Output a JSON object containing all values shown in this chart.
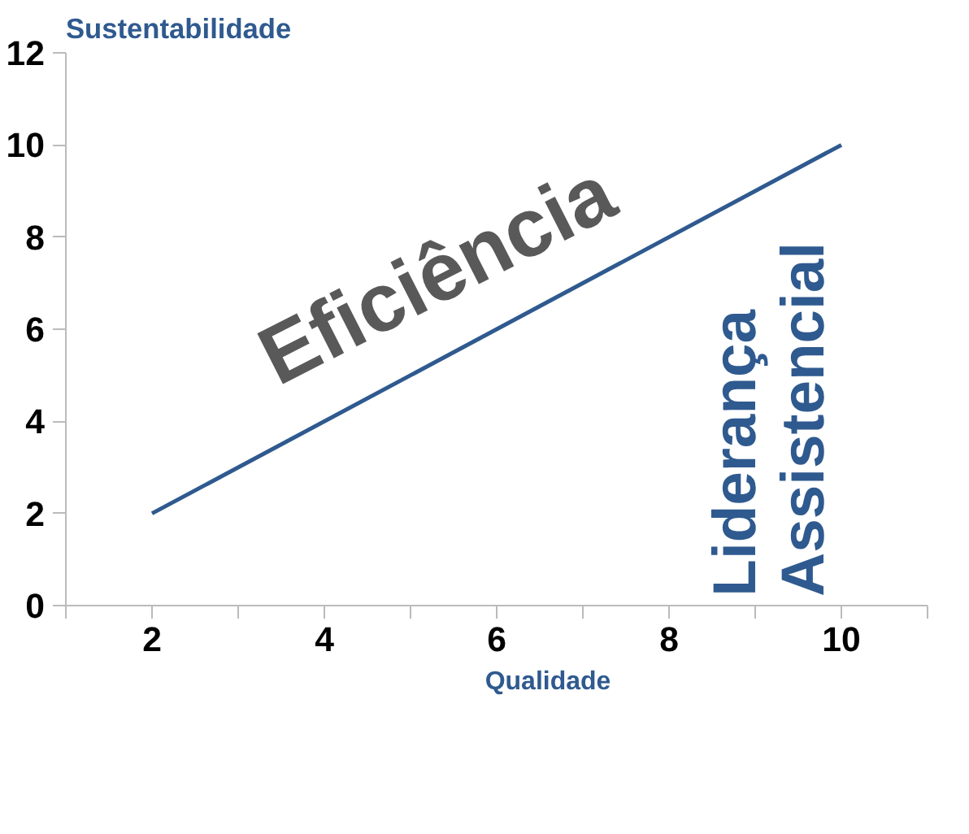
{
  "chart_data": {
    "type": "line",
    "xlabel": null,
    "ylabel": "Sustentabilidade",
    "x": [
      2,
      10
    ],
    "series": [
      {
        "name": "Qualidade",
        "color": "#2f5a8f",
        "values": [
          2,
          10
        ]
      }
    ],
    "xlim": [
      1,
      11
    ],
    "ylim": [
      0,
      12
    ],
    "xticks": [
      {
        "value": 1,
        "label": null
      },
      2,
      {
        "value": 3,
        "label": null
      },
      4,
      {
        "value": 5,
        "label": null
      },
      6,
      {
        "value": 7,
        "label": null
      },
      8,
      {
        "value": 9,
        "label": null
      },
      10,
      {
        "value": 11,
        "label": null
      }
    ],
    "yticks": [
      0,
      2,
      4,
      6,
      8,
      10,
      12
    ],
    "grid": false,
    "legend": "bottom",
    "marker": "none",
    "line_style": "solid",
    "annotations": [
      "Eficiência",
      "Liderança\nAssistencial"
    ]
  }
}
